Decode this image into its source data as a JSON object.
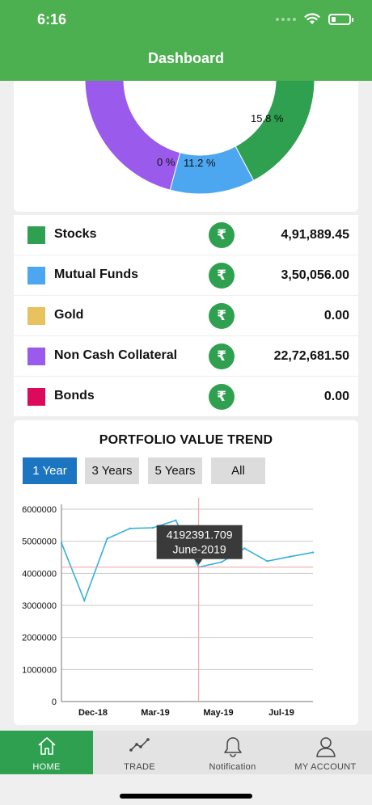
{
  "status_bar": {
    "time": "6:16"
  },
  "header": {
    "title": "Dashboard"
  },
  "donut": {
    "labels": [
      "15.8 %",
      "0 %",
      "11.2 %"
    ],
    "colors": {
      "stocks": "#2ea04f",
      "mutual_funds": "#4da6f0",
      "non_cash_collateral": "#9a5aeb"
    }
  },
  "legend": {
    "items": [
      {
        "label": "Stocks",
        "value": "4,91,889.45",
        "color": "#2ea04f"
      },
      {
        "label": "Mutual Funds",
        "value": "3,50,056.00",
        "color": "#4da6f0"
      },
      {
        "label": "Gold",
        "value": "0.00",
        "color": "#e8c25e"
      },
      {
        "label": "Non Cash Collateral",
        "value": "22,72,681.50",
        "color": "#9a5aeb"
      },
      {
        "label": "Bonds",
        "value": "0.00",
        "color": "#dc0a5a"
      }
    ],
    "currency_symbol": "₹"
  },
  "trend": {
    "title": "PORTFOLIO VALUE TREND",
    "tabs": [
      {
        "label": "1 Year",
        "active": true
      },
      {
        "label": "3 Years",
        "active": false
      },
      {
        "label": "5 Years",
        "active": false
      },
      {
        "label": "All",
        "active": false
      }
    ],
    "tooltip": {
      "value": "4192391.709",
      "date": "June-2019"
    }
  },
  "chart_data": {
    "type": "line",
    "x_tick_labels": [
      "Dec-18",
      "Mar-19",
      "May-19",
      "Jul-19"
    ],
    "y_tick_labels": [
      "0",
      "1000000",
      "2000000",
      "3000000",
      "4000000",
      "5000000",
      "6000000"
    ],
    "ylim": [
      0,
      6000000
    ],
    "series": [
      {
        "values": [
          4950000,
          3150000,
          5080000,
          5400000,
          5420000,
          5650000,
          4192391.709,
          4350000,
          4780000,
          4380000,
          4520000,
          4650000
        ]
      }
    ],
    "highlight_index": 6,
    "line_color": "#35b0d9",
    "grid": true
  },
  "tabbar": {
    "items": [
      {
        "label": "HOME",
        "icon": "home-icon",
        "active": true
      },
      {
        "label": "TRADE",
        "icon": "trend-icon",
        "active": false
      },
      {
        "label": "Notification",
        "icon": "bell-icon",
        "active": false
      },
      {
        "label": "MY ACCOUNT",
        "icon": "user-icon",
        "active": false
      }
    ]
  }
}
